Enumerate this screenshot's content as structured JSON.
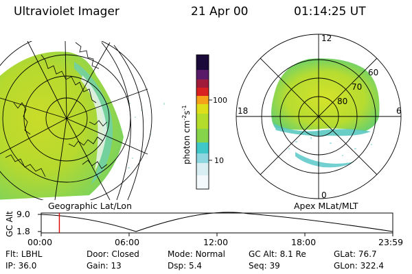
{
  "header": {
    "instrument": "Ultraviolet Imager",
    "date": "21 Apr 00",
    "time": "01:14:25 UT"
  },
  "colorbar": {
    "label": "photon cm⁻²s⁻¹",
    "label_parts": {
      "base": "photon cm",
      "exp1": "-2",
      "mid": "s",
      "exp2": "-1"
    },
    "ticks": [
      "100",
      "10"
    ],
    "colors": [
      "#1a0a3a",
      "#3a1a6e",
      "#8b1a4a",
      "#c81e1e",
      "#e8501a",
      "#f5a11a",
      "#d8d41a",
      "#9ee04a",
      "#3ec8c8",
      "#b8e8f0",
      "#ffffff"
    ]
  },
  "left_map": {
    "projection_label": "Geographic Lat/Lon"
  },
  "right_map": {
    "projection_label": "Apex MLat/MLT",
    "mlt_labels": {
      "top": "12",
      "bottom": "0",
      "left": "18",
      "right": "6"
    },
    "mlat_labels": [
      "60",
      "70",
      "80"
    ]
  },
  "altitude_plot": {
    "ylabel": "GC Alt",
    "yticks": [
      "9.0",
      "1.8"
    ],
    "xticks": [
      "00:00",
      "06:00",
      "12:00",
      "18:00",
      "23:59"
    ],
    "marker_color": "#e00000",
    "marker_time_hours": 1.24
  },
  "status": {
    "row1": [
      {
        "key": "Flt:",
        "value": "LBHL"
      },
      {
        "key": "Door:",
        "value": "Closed"
      },
      {
        "key": "Mode:",
        "value": "Normal"
      },
      {
        "key": "GC Alt:",
        "value": "8.1 Re"
      },
      {
        "key": "GLat:",
        "value": "76.7"
      }
    ],
    "row2": [
      {
        "key": "IP:",
        "value": "36.0"
      },
      {
        "key": "Gain:",
        "value": "13"
      },
      {
        "key": "Dsp:",
        "value": "5.4"
      },
      {
        "key": "Seq:",
        "value": "39"
      },
      {
        "key": "GLon:",
        "value": "322.4"
      }
    ]
  }
}
